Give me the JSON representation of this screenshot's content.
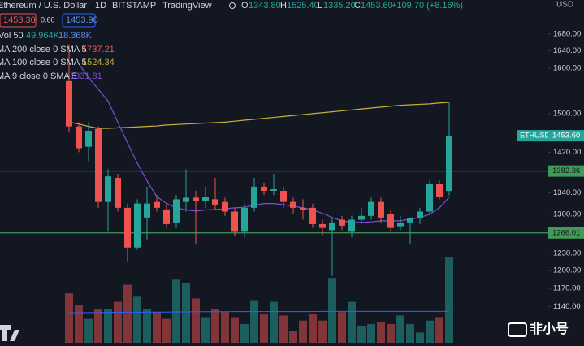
{
  "header": {
    "symbol": "Ethereum / U.S. Dollar",
    "interval": "1D",
    "exchange": "BITSTAMP",
    "source": "TradingView",
    "o_key": "O",
    "o_val": "1343.80",
    "h_key": "H",
    "h_val": "1525.40",
    "l_key": "L",
    "l_val": "1335.20",
    "c_key": "C",
    "c_val": "1453.60",
    "change": "+109.70 (+8.16%)",
    "sell": "1453.30",
    "spread": "0.60",
    "buy": "1453.90",
    "currency": "USD"
  },
  "watermark": "非小号",
  "chart_data": {
    "type": "candlestick",
    "log_scale": true,
    "grid": false,
    "ylim": [
      1078,
      1763
    ],
    "yticks": [
      {
        "value": 1680,
        "label": "1680.00"
      },
      {
        "value": 1640,
        "label": "1640.00"
      },
      {
        "value": 1600,
        "label": "1600.00"
      },
      {
        "value": 1500,
        "label": "1500.00"
      },
      {
        "value": 1420,
        "label": "1420.00"
      },
      {
        "value": 1340,
        "label": "1340.00"
      },
      {
        "value": 1300,
        "label": "1300.00"
      },
      {
        "value": 1230,
        "label": "1230.00"
      },
      {
        "value": 1200,
        "label": "1200.00"
      },
      {
        "value": 1170,
        "label": "1170.00"
      },
      {
        "value": 1140,
        "label": "1140.00"
      }
    ],
    "up_color": "#26a69a",
    "down_color": "#ef5350",
    "candles": {
      "open": [
        1571,
        1473,
        1431,
        1468,
        1323,
        1369,
        1312,
        1240,
        1294,
        1323,
        1309,
        1285,
        1323,
        1331,
        1325,
        1328,
        1323,
        1305,
        1268,
        1312,
        1352,
        1344,
        1344,
        1323,
        1312,
        1312,
        1282,
        1271,
        1290,
        1268,
        1290,
        1297,
        1323,
        1300,
        1278,
        1285,
        1293,
        1305,
        1357,
        1343.8
      ],
      "high": [
        1655,
        1482,
        1482,
        1473,
        1386,
        1377,
        1320,
        1328,
        1352,
        1336,
        1320,
        1336,
        1386,
        1344,
        1352,
        1369,
        1331,
        1312,
        1320,
        1369,
        1360,
        1377,
        1352,
        1331,
        1328,
        1320,
        1290,
        1294,
        1297,
        1297,
        1312,
        1331,
        1331,
        1309,
        1297,
        1294,
        1312,
        1364,
        1364,
        1525.4
      ],
      "low": [
        1460,
        1420,
        1402,
        1312,
        1268,
        1305,
        1215,
        1236,
        1254,
        1305,
        1275,
        1275,
        1305,
        1247,
        1312,
        1309,
        1297,
        1261,
        1258,
        1305,
        1336,
        1336,
        1312,
        1300,
        1290,
        1275,
        1261,
        1191,
        1271,
        1258,
        1282,
        1290,
        1285,
        1268,
        1271,
        1247,
        1282,
        1300,
        1328,
        1335.2
      ],
      "close": [
        1473,
        1428,
        1464,
        1323,
        1372,
        1312,
        1240,
        1320,
        1320,
        1312,
        1282,
        1328,
        1331,
        1325,
        1333,
        1318,
        1305,
        1268,
        1312,
        1352,
        1344,
        1347,
        1323,
        1312,
        1308,
        1282,
        1275,
        1285,
        1279,
        1290,
        1297,
        1323,
        1294,
        1275,
        1285,
        1293,
        1305,
        1357,
        1333,
        1453.6
      ]
    },
    "volume_lim": [
      0,
      200
    ],
    "volume": [
      29,
      22,
      14,
      20,
      20,
      24,
      34,
      27,
      20,
      18,
      14,
      37,
      35,
      26,
      15,
      20,
      18,
      15,
      11,
      25,
      17,
      24,
      16,
      7,
      13,
      17,
      13,
      38,
      18,
      24,
      10,
      11,
      12,
      11,
      16,
      11,
      6,
      13,
      15,
      49.964
    ],
    "volume_ma": [
      17.6,
      17.6,
      17.7,
      17.7,
      17.8,
      17.8,
      17.9,
      17.9,
      18,
      18,
      18,
      18.1,
      18.1,
      18.2,
      18.2,
      18.2,
      18.2,
      18.3,
      18.3,
      18.3,
      18.3,
      18.3,
      18.3,
      18.3,
      18.3,
      18.3,
      18.4,
      18.4,
      18.4,
      18.4,
      18.4,
      18.4,
      18.4,
      18.4,
      18.4,
      18.4,
      18.4,
      18.4,
      18.4,
      18.368
    ],
    "volume_ma_color": "#2962ff",
    "volume_legend": {
      "name": "Vol 50",
      "value_label": "49.964K",
      "ma_label": "18.368K"
    },
    "series": [
      {
        "name": "MA 200 close 0 SMA 5",
        "value_label": "1737.21",
        "color": "#f05350"
      },
      {
        "name": "MA 100 close 0 SMA 5",
        "value_label": "1524.34",
        "color": "#c9b036",
        "values": [
          1482,
          1478,
          1473,
          1469,
          1469,
          1470,
          1471,
          1472,
          1473,
          1474,
          1476,
          1477,
          1478,
          1479,
          1480,
          1481,
          1482,
          1484,
          1486,
          1488,
          1490,
          1492,
          1494,
          1496,
          1498,
          1500,
          1502,
          1504,
          1506,
          1508,
          1510,
          1512,
          1514,
          1516,
          1518,
          1519,
          1520,
          1521,
          1523,
          1524.34
        ]
      },
      {
        "name": "MA 9 close 0 SMA 5",
        "value_label": "1331.81",
        "color": "#7b4fd6",
        "values": [
          null,
          1610,
          1579,
          1553,
          1527,
          1482,
          1439,
          1398,
          1363,
          1333,
          1320,
          1312,
          1308,
          1306,
          1308,
          1309,
          1310,
          1312,
          1313,
          1317,
          1320,
          1320,
          1318,
          1315,
          1312,
          1308,
          1302,
          1294,
          1288,
          1285,
          1285,
          1286,
          1288,
          1288,
          1288,
          1291,
          1294,
          1300,
          1312,
          1331.81
        ]
      }
    ],
    "hline_color": "#3f9b55",
    "hlines": [
      {
        "value": 1382.36,
        "label": "1382.36"
      },
      {
        "value": 1266.01,
        "label": "1266.01"
      }
    ],
    "price_label": {
      "name": "ETHUSD",
      "value": 1453.6,
      "label": "1453.60"
    }
  }
}
